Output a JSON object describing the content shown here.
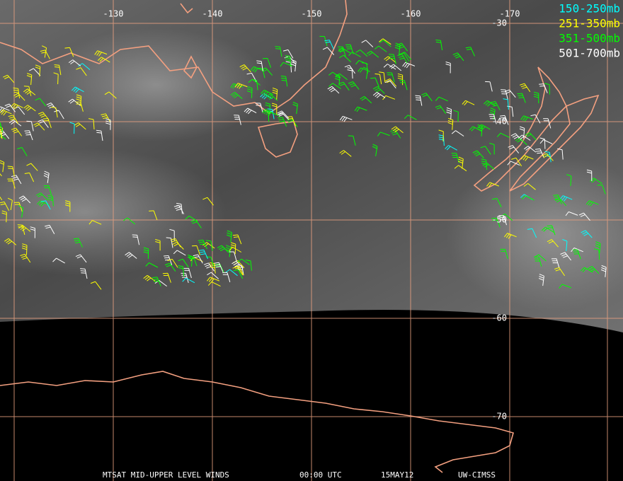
{
  "map": {
    "lon_labels": [
      -130,
      -140,
      -150,
      -160,
      -170
    ],
    "lat_labels": [
      -30,
      -40,
      -50,
      -60,
      -70
    ],
    "legend": [
      {
        "label": "150-250mb",
        "color": "#00ffff"
      },
      {
        "label": "251-350mb",
        "color": "#ffff00"
      },
      {
        "label": "351-500mb",
        "color": "#00ff00"
      },
      {
        "label": "501-700mb",
        "color": "#ffffff"
      }
    ],
    "footer": [
      "MTSAT MID-UPPER LEVEL WINDS",
      "00:00 UTC",
      "15MAY12",
      "UW-CIMSS"
    ]
  }
}
